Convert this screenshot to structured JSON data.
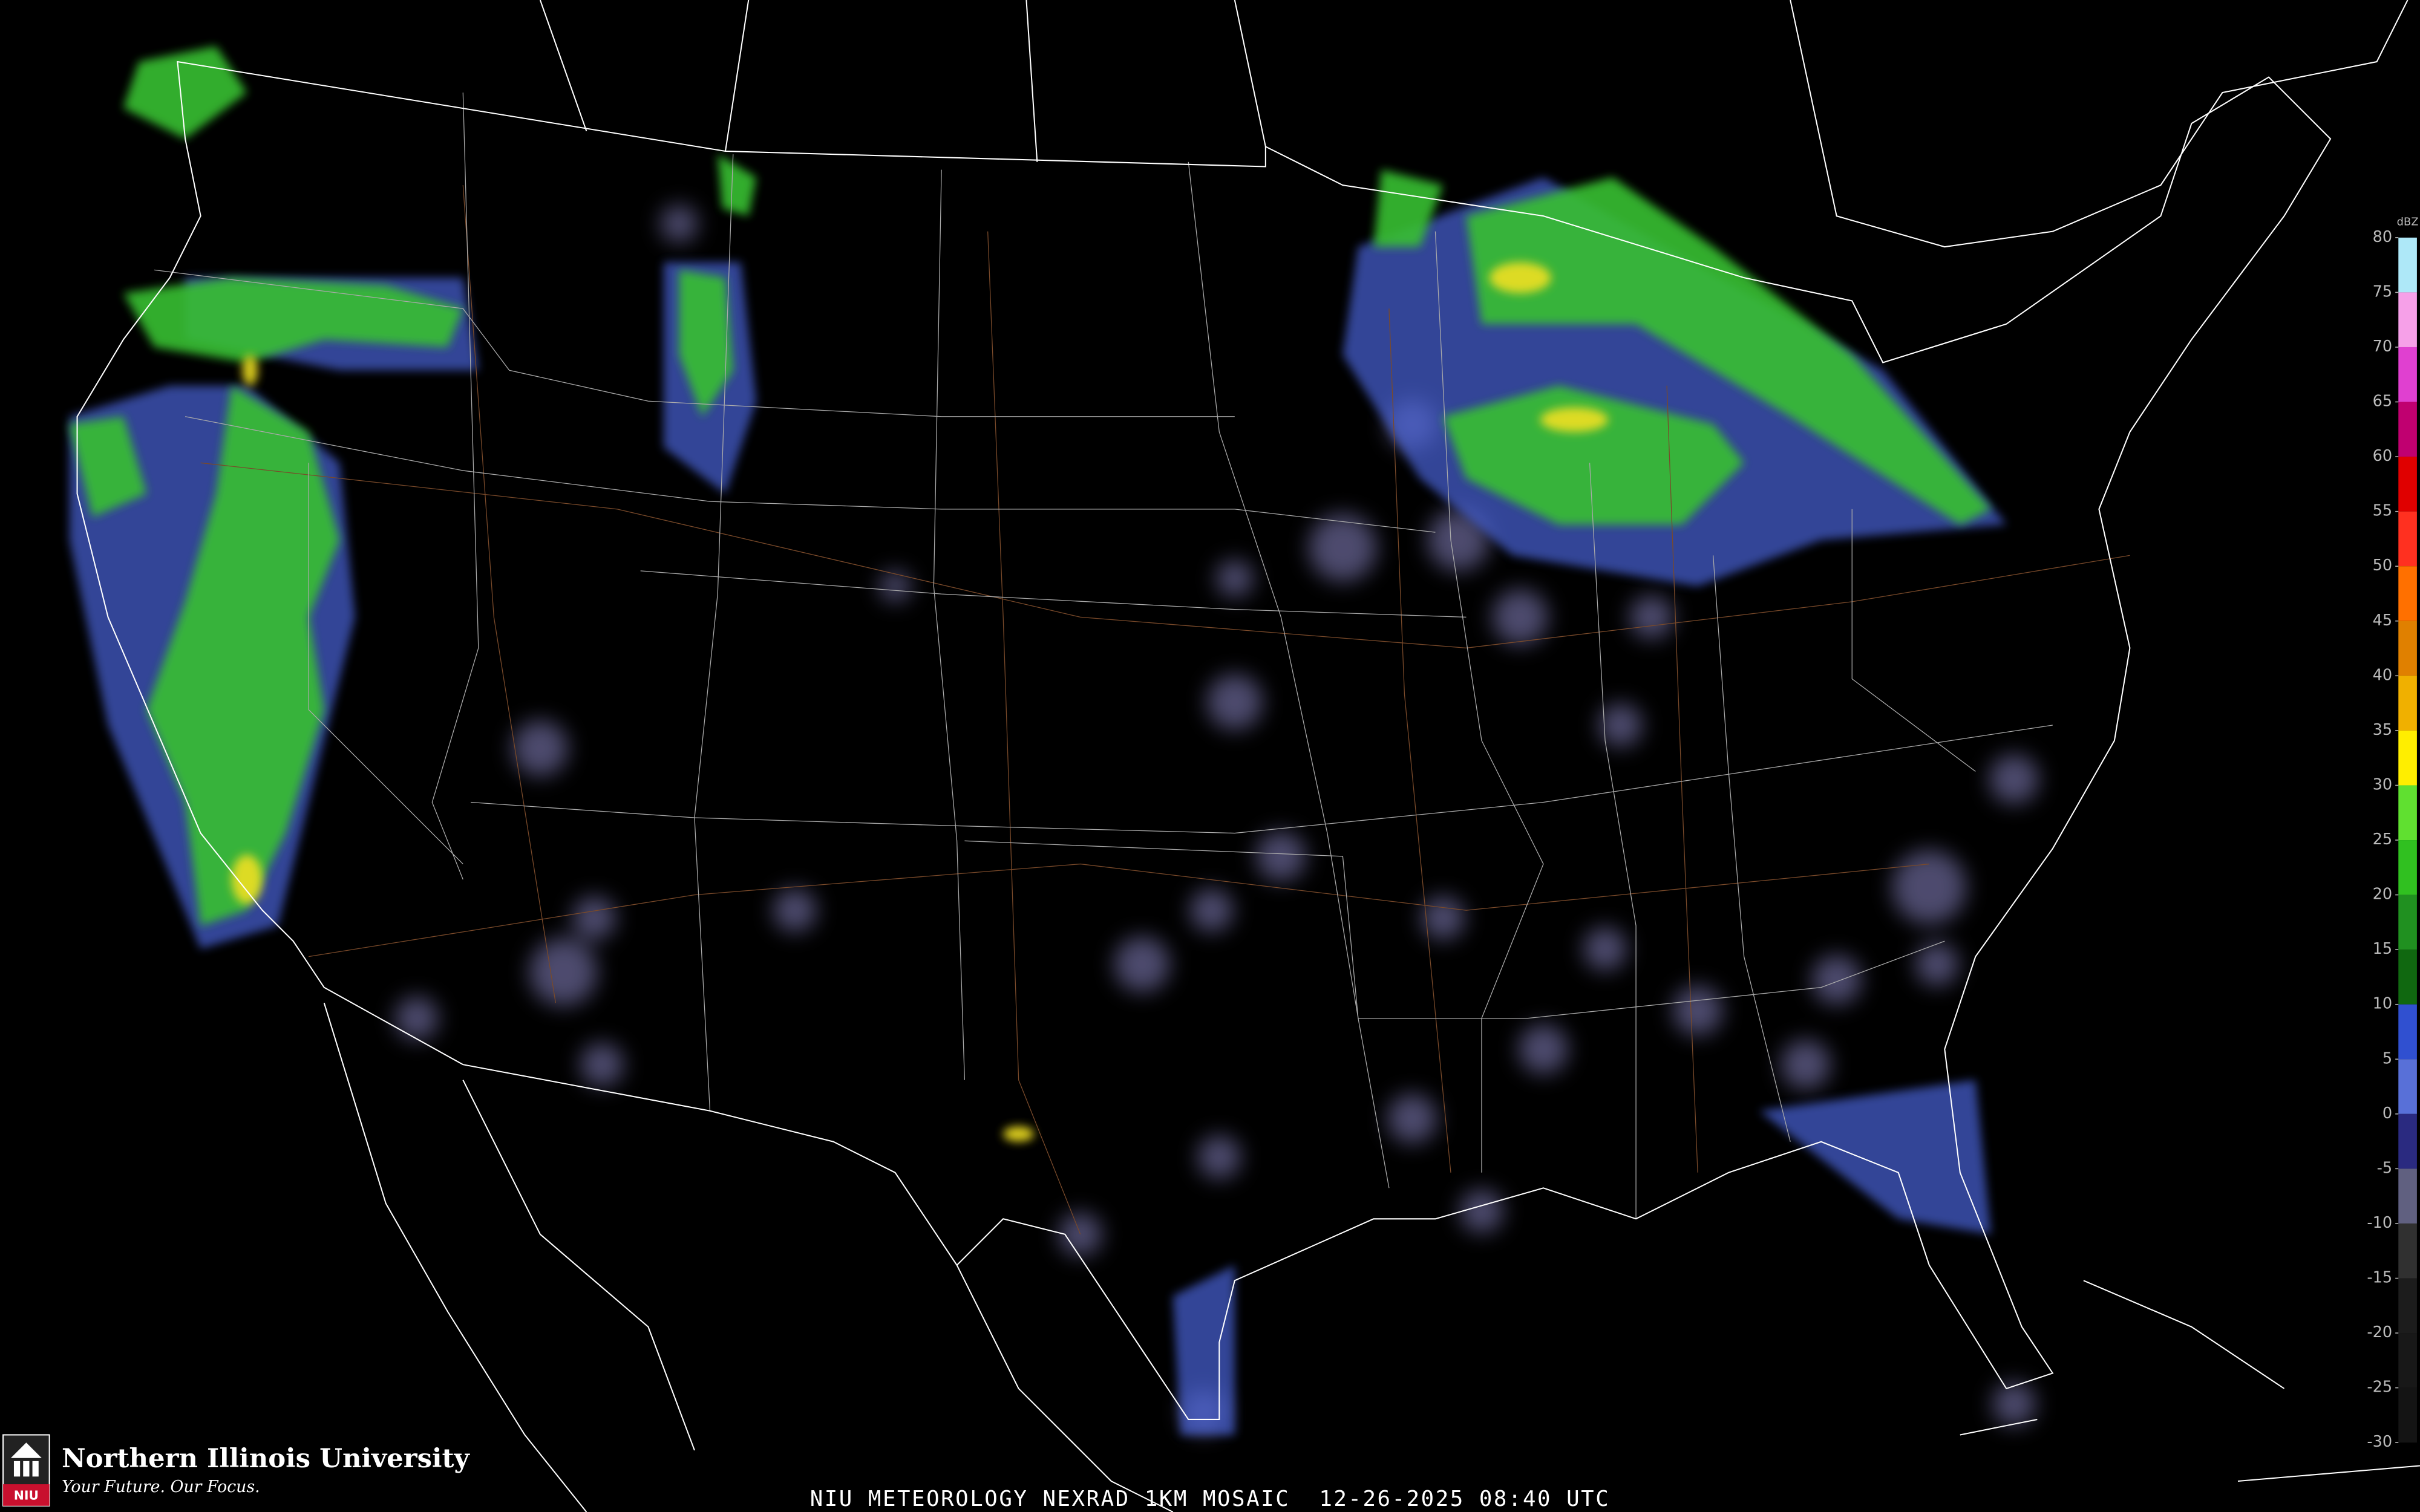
{
  "footer": {
    "caption": "NIU METEOROLOGY NEXRAD 1KM MOSAIC  12-26-2025 08:40 UTC"
  },
  "logo": {
    "emblem": "NIU",
    "name": "Northern Illinois University",
    "tagline": "Your Future. Our Focus."
  },
  "legend": {
    "unit": "dBZ",
    "ticks": [
      80,
      75,
      70,
      65,
      60,
      55,
      50,
      45,
      40,
      35,
      30,
      25,
      20,
      15,
      10,
      5,
      0,
      -5,
      -10,
      -15,
      -20,
      -25,
      -30
    ],
    "colors": [
      "#aee8f8",
      "#f6a0e8",
      "#e040d0",
      "#c00070",
      "#e00000",
      "#ff3020",
      "#ff7000",
      "#e08000",
      "#f0b000",
      "#ffee00",
      "#60e030",
      "#30c020",
      "#209020",
      "#106810",
      "#3050d0",
      "#5870d8",
      "#2a2a80",
      "#606080",
      "#303030",
      "#1c1c1c",
      "#181818",
      "#141414"
    ]
  }
}
